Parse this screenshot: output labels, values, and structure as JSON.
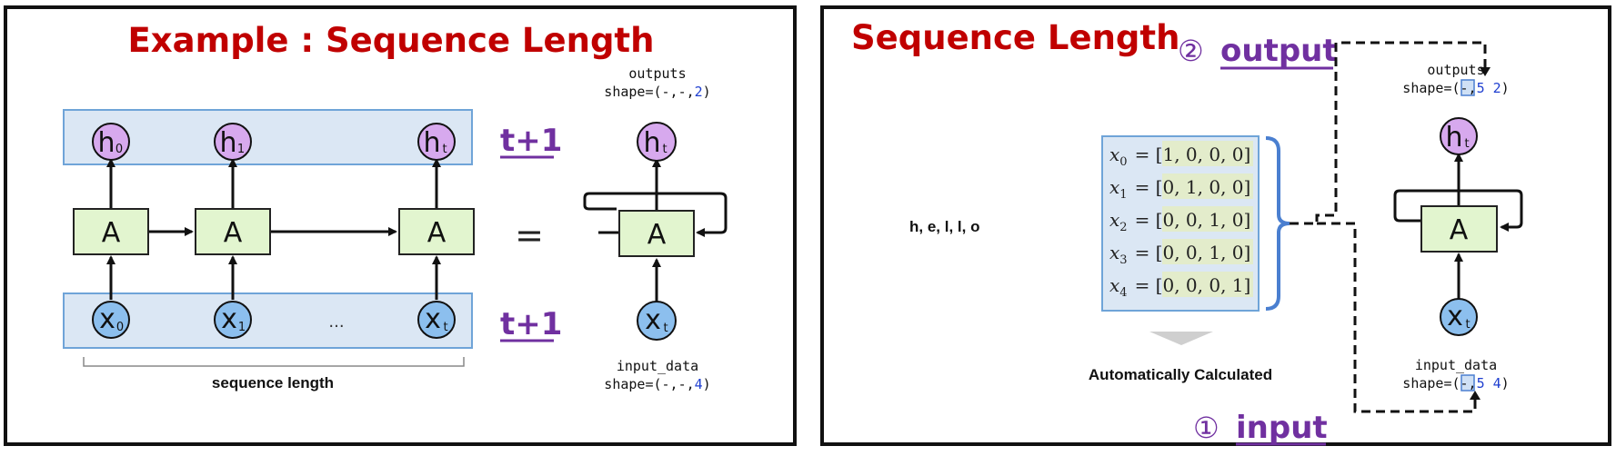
{
  "left": {
    "title": "Example : Sequence Length",
    "cell_label": "A",
    "hidden_nodes": [
      {
        "main": "h",
        "sub": "0"
      },
      {
        "main": "h",
        "sub": "1"
      },
      {
        "main": "h",
        "sub": "t"
      }
    ],
    "input_nodes": [
      {
        "main": "x",
        "sub": "0"
      },
      {
        "main": "x",
        "sub": "1"
      },
      {
        "main": "x",
        "sub": "t"
      }
    ],
    "ellipsis": "...",
    "tplus_top": "t+1",
    "tplus_bottom": "t+1",
    "equals": "=",
    "sequence_length_label": "sequence length",
    "outputs_label": "outputs",
    "outputs_shape_prefix": "shape=(-,-,",
    "outputs_shape_value": "2",
    "outputs_shape_suffix": ")",
    "input_label": "input_data",
    "input_shape_prefix": "shape=(-,-,",
    "input_shape_value": "4",
    "input_shape_suffix": ")",
    "rolled_h": {
      "main": "h",
      "sub": "t"
    },
    "rolled_x": {
      "main": "x",
      "sub": "t"
    }
  },
  "right": {
    "title": "Sequence Length",
    "output_marker": "②",
    "output_label": "output",
    "input_marker": "①",
    "input_label": "input",
    "chars_label": "h, e, l, l, o",
    "one_hot": [
      {
        "var": "x",
        "sub": "0",
        "vec": "= [1, 0, 0, 0]"
      },
      {
        "var": "x",
        "sub": "1",
        "vec": "= [0, 1, 0, 0]"
      },
      {
        "var": "x",
        "sub": "2",
        "vec": "= [0, 0, 1, 0]"
      },
      {
        "var": "x",
        "sub": "3",
        "vec": "= [0, 0, 1, 0]"
      },
      {
        "var": "x",
        "sub": "4",
        "vec": "= [0, 0, 0, 1]"
      }
    ],
    "auto_label": "Automatically Calculated",
    "cell_label": "A",
    "rolled_h": {
      "main": "h",
      "sub": "t"
    },
    "rolled_x": {
      "main": "x",
      "sub": "t"
    },
    "outputs_label": "outputs",
    "outputs_shape_prefix": "shape=(-,",
    "outputs_shape_boxed": "5",
    "outputs_shape_value": "2",
    "outputs_shape_suffix": ")",
    "input_label_code": "input_data",
    "input_shape_prefix": "shape=(-,",
    "input_shape_boxed": "5",
    "input_shape_value": "4",
    "input_shape_suffix": ")"
  }
}
